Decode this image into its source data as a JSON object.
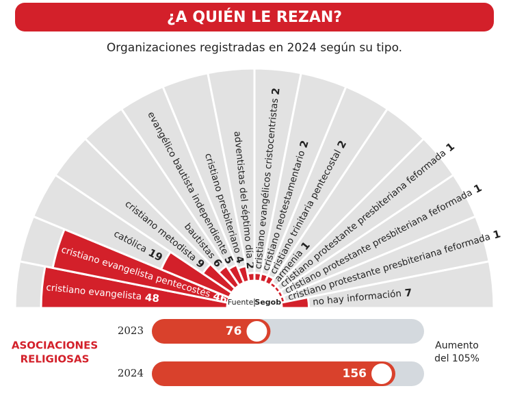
{
  "chart_data": [
    {
      "type": "radial_bar",
      "title": "¿A QUIÉN LE REZAN?",
      "subtitle": "Organizaciones registradas en 2024 según su tipo.",
      "categories": [
        "cristiano evangelista",
        "cristiano evangelista pentecostés",
        "católica",
        "cristiano metodista",
        "bautistas",
        "evangélico bautista independiente",
        "cristiano presbiteriano",
        "adventistas del séptimo día",
        "cristiano evangélicos cristocentristas",
        "cristiano neotestamentario",
        "cristiano trinitaria pentecostal",
        "armenia",
        "cristiano protestante presbiteriana feformada",
        "cristiano protestante presbiteriana feformada",
        "cristiano protestante presbiteriana feformada",
        "no hay información"
      ],
      "values": [
        48,
        46,
        19,
        9,
        6,
        5,
        4,
        2,
        2,
        2,
        2,
        1,
        1,
        1,
        1,
        7
      ],
      "color": "#d3202a",
      "source_label": "Fuente",
      "source": "Segob"
    },
    {
      "type": "progress",
      "title": [
        "ASOCIACIONES",
        "RELIGIOSAS"
      ],
      "categories": [
        "2023",
        "2024"
      ],
      "values": [
        76,
        156
      ],
      "color": "#d9412c",
      "annotation": [
        "Aumento",
        "del 105%"
      ]
    }
  ]
}
